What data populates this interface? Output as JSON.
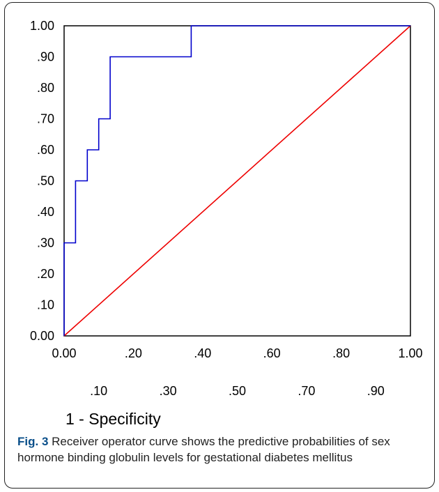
{
  "chart_data": {
    "type": "line",
    "title": "",
    "xlabel": "1 - Specificity",
    "ylabel": "",
    "xlim": [
      0,
      1
    ],
    "ylim": [
      0,
      1
    ],
    "grid": false,
    "x_ticks_row1": [
      ".00",
      ".20",
      ".40",
      ".60",
      ".80",
      "1.00"
    ],
    "x_ticks_row1_values": [
      0.0,
      0.2,
      0.4,
      0.6,
      0.8,
      1.0
    ],
    "x_ticks_row1_labels": [
      "0.00",
      ".20",
      ".40",
      ".60",
      ".80",
      "1.00"
    ],
    "x_ticks_row2_values": [
      0.1,
      0.3,
      0.5,
      0.7,
      0.9
    ],
    "x_ticks_row2_labels": [
      ".10",
      ".30",
      ".50",
      ".70",
      ".90"
    ],
    "y_ticks_values": [
      0.0,
      0.1,
      0.2,
      0.3,
      0.4,
      0.5,
      0.6,
      0.7,
      0.8,
      0.9,
      1.0
    ],
    "y_ticks_labels": [
      "0.00",
      ".10",
      ".20",
      ".30",
      ".40",
      ".50",
      ".60",
      ".70",
      ".80",
      ".90",
      "1.00"
    ],
    "series": [
      {
        "color": "#0000cc",
        "x": [
          0.0,
          0.0,
          0.033,
          0.033,
          0.067,
          0.067,
          0.1,
          0.1,
          0.133,
          0.133,
          0.367,
          0.367,
          1.0
        ],
        "y": [
          0.0,
          0.3,
          0.3,
          0.5,
          0.5,
          0.6,
          0.6,
          0.7,
          0.7,
          0.9,
          0.9,
          1.0,
          1.0
        ]
      },
      {
        "color": "#ee0000",
        "x": [
          0.0,
          1.0
        ],
        "y": [
          0.0,
          1.0
        ]
      }
    ]
  },
  "caption": {
    "label": "Fig. 3",
    "text": " Receiver operator curve shows the predictive probabilities of sex hormone binding globulin levels for gestational diabetes mellitus"
  }
}
